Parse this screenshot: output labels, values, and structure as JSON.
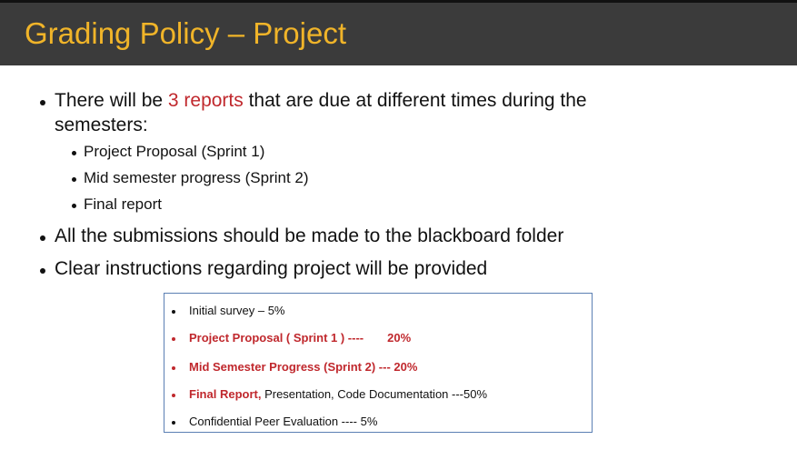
{
  "title": "Grading Policy – Project",
  "colors": {
    "title_bar": "#3b3b3b",
    "title_text": "#f0b429",
    "accent_red": "#c0282d",
    "box_border": "#5b7fb3"
  },
  "bullets": {
    "reports_pre": "There will be ",
    "reports_highlight": "3 reports",
    "reports_post": " that are due at different times during the",
    "reports_cont": "semesters:",
    "sub_items": [
      "Project Proposal (Sprint 1)",
      "Mid semester progress (Sprint 2)",
      "Final report"
    ],
    "submissions": "All the submissions should be made to the blackboard folder",
    "instructions": "Clear instructions regarding project will be provided"
  },
  "breakdown": {
    "items": [
      {
        "text": "Initial survey – 5%",
        "style": "plain"
      },
      {
        "text": "Project Proposal  ( Sprint 1 ) ----",
        "value": "20%",
        "style": "red"
      },
      {
        "text": "Mid Semester Progress (Sprint 2) --- 20%",
        "style": "red"
      },
      {
        "red_part": "Final Report,",
        "rest": " Presentation, Code Documentation ---50%",
        "style": "mixed"
      },
      {
        "text": "Confidential Peer Evaluation ---- 5%",
        "style": "plain"
      }
    ]
  }
}
